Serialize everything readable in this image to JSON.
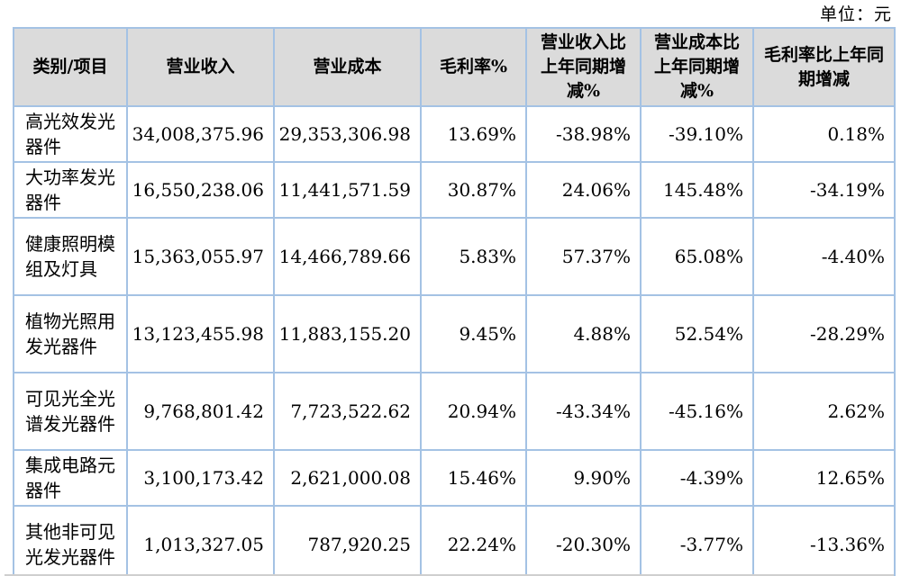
{
  "unit_label": "单位：元",
  "table": {
    "columns": [
      "类别/项目",
      "营业收入",
      "营业成本",
      "毛利率%",
      "营业收入比上年同期增减%",
      "营业成本比上年同期增减%",
      "毛利率比上年同期增减"
    ],
    "row_keys": [
      "category",
      "revenue",
      "cost",
      "gross_margin",
      "revenue_yoy",
      "cost_yoy",
      "margin_yoy"
    ],
    "rows": [
      {
        "category": "高光效发光器件",
        "revenue": "34,008,375.96",
        "cost": "29,353,306.98",
        "gross_margin": "13.69%",
        "revenue_yoy": "-38.98%",
        "cost_yoy": "-39.10%",
        "margin_yoy": "0.18%"
      },
      {
        "category": "大功率发光器件",
        "revenue": "16,550,238.06",
        "cost": "11,441,571.59",
        "gross_margin": "30.87%",
        "revenue_yoy": "24.06%",
        "cost_yoy": "145.48%",
        "margin_yoy": "-34.19%"
      },
      {
        "category": "健康照明模组及灯具",
        "revenue": "15,363,055.97",
        "cost": "14,466,789.66",
        "gross_margin": "5.83%",
        "revenue_yoy": "57.37%",
        "cost_yoy": "65.08%",
        "margin_yoy": "-4.40%"
      },
      {
        "category": "植物光照用发光器件",
        "revenue": "13,123,455.98",
        "cost": "11,883,155.20",
        "gross_margin": "9.45%",
        "revenue_yoy": "4.88%",
        "cost_yoy": "52.54%",
        "margin_yoy": "-28.29%"
      },
      {
        "category": "可见光全光谱发光器件",
        "revenue": "9,768,801.42",
        "cost": "7,723,522.62",
        "gross_margin": "20.94%",
        "revenue_yoy": "-43.34%",
        "cost_yoy": "-45.16%",
        "margin_yoy": "2.62%"
      },
      {
        "category": "集成电路元器件",
        "revenue": "3,100,173.42",
        "cost": "2,621,000.08",
        "gross_margin": "15.46%",
        "revenue_yoy": "9.90%",
        "cost_yoy": "-4.39%",
        "margin_yoy": "12.65%"
      },
      {
        "category": "其他非可见光发光器件",
        "revenue": "1,013,327.05",
        "cost": "787,920.25",
        "gross_margin": "22.24%",
        "revenue_yoy": "-20.30%",
        "cost_yoy": "-3.77%",
        "margin_yoy": "-13.36%"
      }
    ]
  }
}
